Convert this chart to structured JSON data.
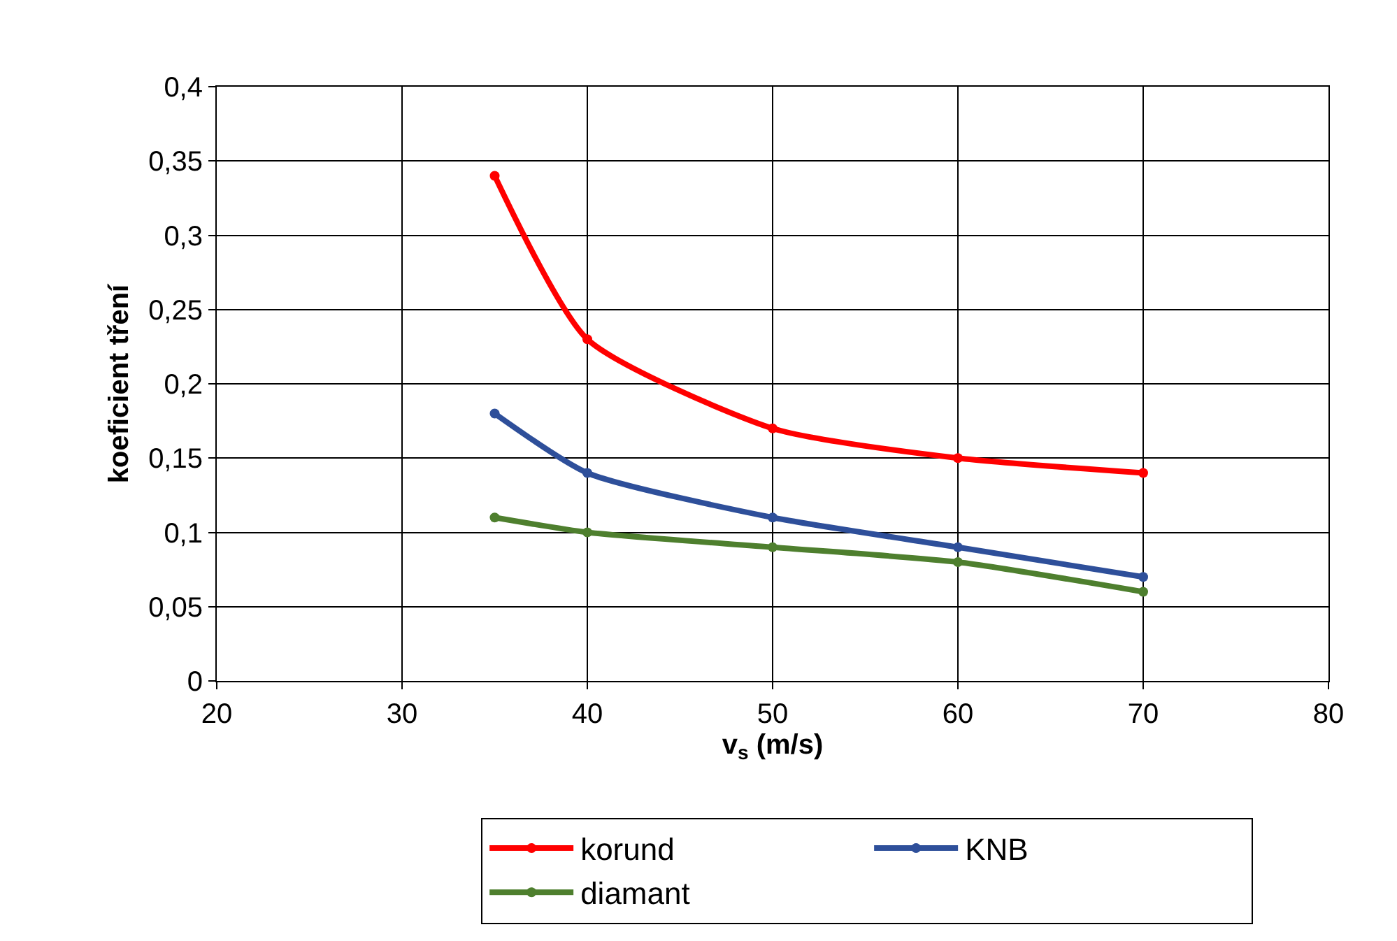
{
  "chart_data": {
    "type": "line",
    "xlabel": "v$_{s}$ (m/s)",
    "ylabel": "koeficient tření",
    "x": [
      35,
      40,
      50,
      60,
      70
    ],
    "series": [
      {
        "name": "korund",
        "color": "#ff0000",
        "values": [
          0.34,
          0.23,
          0.17,
          0.15,
          0.14
        ]
      },
      {
        "name": "KNB",
        "color": "#2e4f9a",
        "values": [
          0.18,
          0.14,
          0.11,
          0.09,
          0.07
        ]
      },
      {
        "name": "diamant",
        "color": "#4e7f2e",
        "values": [
          0.11,
          0.1,
          0.09,
          0.08,
          0.06
        ]
      }
    ],
    "xlim": [
      20,
      80
    ],
    "xticks": [
      20,
      30,
      40,
      50,
      60,
      70,
      80
    ],
    "ylim": [
      0,
      0.4
    ],
    "yticks": [
      0,
      {
        "value": 0.05,
        "label": "0,05"
      },
      {
        "value": 0.1,
        "label": "0,1"
      },
      {
        "value": 0.15,
        "label": "0,15"
      },
      {
        "value": 0.2,
        "label": "0,2"
      },
      {
        "value": 0.25,
        "label": "0,25"
      },
      {
        "value": 0.3,
        "label": "0,3"
      },
      {
        "value": 0.35,
        "label": "0,35"
      },
      {
        "value": 0.4,
        "label": "0,4"
      }
    ],
    "grid": true,
    "legend": "bottom",
    "marker": "circle",
    "line_style": "solid"
  }
}
